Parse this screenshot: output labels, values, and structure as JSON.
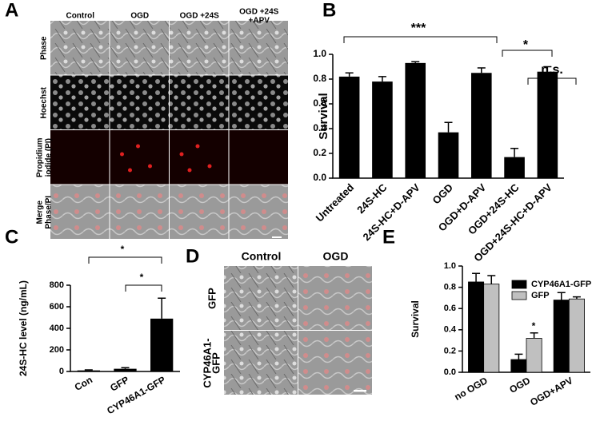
{
  "figure": {
    "panel_letters": [
      "A",
      "B",
      "C",
      "D",
      "E"
    ],
    "panel_a": {
      "columns": [
        "Control",
        "OGD",
        "OGD +24S",
        [
          "OGD +24S",
          "+APV"
        ]
      ],
      "rows": [
        "Phase",
        "Hoechst",
        [
          "Propidium",
          "iodide (PI)"
        ],
        [
          "Merge",
          "Phase/PI"
        ]
      ]
    },
    "panel_d": {
      "columns": [
        "Control",
        "OGD"
      ],
      "rows": [
        "GFP",
        [
          "CYP46A1-",
          "GFP"
        ]
      ]
    }
  },
  "chart_data": [
    {
      "type": "bar",
      "y_label": "Survival",
      "categories": [
        "Untreated",
        "24S-HC",
        "24S-HC+D-APV",
        "OGD",
        "OGD+D-APV",
        "OGD+24S-HC",
        "OGD+24S-HC+D-APV"
      ],
      "values": [
        0.82,
        0.78,
        0.93,
        0.37,
        0.85,
        0.17,
        0.86
      ],
      "errors": [
        0.03,
        0.04,
        0.01,
        0.08,
        0.04,
        0.07,
        0.04
      ],
      "color": "#000000",
      "ylim": [
        0,
        1.0
      ],
      "yticks": [
        {
          "value": 0,
          "label": "0.0"
        },
        0.2,
        0.4,
        0.6,
        0.8,
        {
          "value": 1.0,
          "label": "1.0"
        }
      ],
      "annotations": [
        "***",
        "*",
        "n.s."
      ]
    },
    {
      "type": "bar",
      "y_label": "24S-HC level (ng/mL)",
      "categories": [
        "Con",
        "GFP",
        "CYP46A1-GFP"
      ],
      "values": [
        10,
        25,
        490
      ],
      "errors": [
        5,
        10,
        190
      ],
      "color": "#000000",
      "ylim": [
        0,
        800
      ],
      "yticks": [
        0,
        200,
        400,
        600,
        800
      ],
      "annotations": [
        "*",
        "*"
      ]
    },
    {
      "type": "grouped_bar",
      "y_label": "Survival",
      "categories": [
        "no OGD",
        "OGD",
        "OGD+APV"
      ],
      "series": [
        {
          "name": "CYP46A1-GFP",
          "color": "#000000",
          "values": [
            0.85,
            0.12,
            0.68
          ],
          "errors": [
            0.08,
            0.05,
            0.07
          ]
        },
        {
          "name": "GFP",
          "color": "#c0c0c0",
          "values": [
            0.83,
            0.32,
            0.69
          ],
          "errors": [
            0.08,
            0.05,
            0.02
          ]
        }
      ],
      "ylim": [
        0,
        1.0
      ],
      "yticks": [
        {
          "value": 0,
          "label": "0.0"
        },
        0.2,
        0.4,
        0.6,
        0.8,
        {
          "value": 1.0,
          "label": "1.0"
        }
      ],
      "annotations": [
        "*"
      ]
    }
  ]
}
